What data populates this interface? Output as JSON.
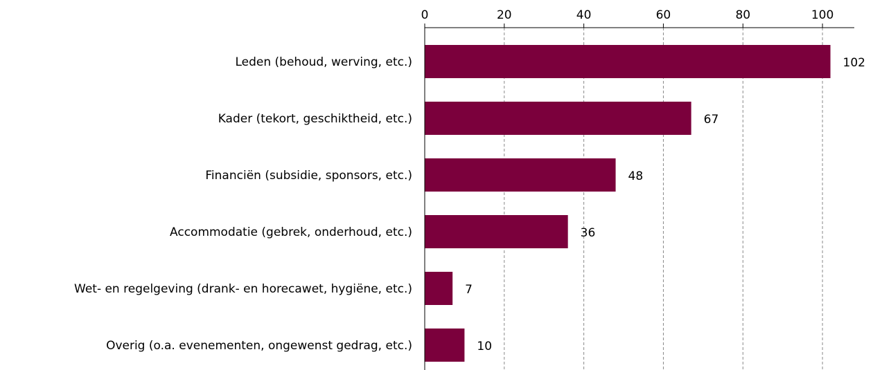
{
  "chart_data": {
    "type": "barh",
    "categories": [
      "Leden (behoud, werving, etc.)",
      "Kader (tekort, geschiktheid, etc.)",
      "Financiën (subsidie, sponsors, etc.)",
      "Accommodatie (gebrek, onderhoud, etc.)",
      "Wet- en regelgeving (drank- en horecawet, hygiëne, etc.)",
      "Overig (o.a. evenementen, ongewenst gedrag, etc.)"
    ],
    "values": [
      102,
      67,
      48,
      36,
      7,
      10
    ],
    "color": "#7b003c",
    "xlim": [
      0,
      108
    ],
    "xticks": [
      0,
      20,
      40,
      60,
      80,
      100
    ],
    "grid": true
  }
}
